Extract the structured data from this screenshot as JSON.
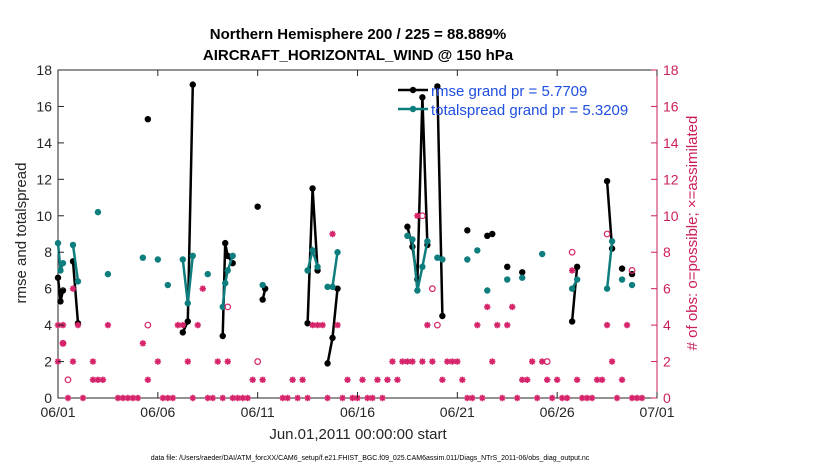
{
  "chart_data": {
    "type": "line",
    "title": "Northern Hemisphere 200 / 225 = 88.889%",
    "subtitle": "AIRCRAFT_HORIZONTAL_WIND @ 150 hPa",
    "ylabel": "rmse and totalspread",
    "ylabel_right": "# of obs: o=possible; ×=assimilated",
    "xlabel": "Jun.01,2011 00:00:00 start",
    "footer": "data file: /Users/raeder/DAI/ATM_forcXX/CAM6_setup/f.e21.FHIST_BGC.f09_025.CAM6assim.011/Diags_NTrS_2011-06/obs_diag_output.nc",
    "xlim": [
      0,
      30
    ],
    "ylim": [
      0,
      18
    ],
    "ylim_right": [
      0,
      18
    ],
    "x_ticks": [
      0,
      5,
      10,
      15,
      20,
      25,
      30
    ],
    "x_tick_labels": [
      "06/01",
      "06/06",
      "06/11",
      "06/16",
      "06/21",
      "06/26",
      "07/01"
    ],
    "y_ticks": [
      0,
      2,
      4,
      6,
      8,
      10,
      12,
      14,
      16,
      18
    ],
    "y_tick_labels": [
      "0",
      "2",
      "4",
      "6",
      "8",
      "10",
      "12",
      "14",
      "16",
      "18"
    ],
    "y_right_tick_labels": [
      "0",
      "2",
      "4",
      "6",
      "8",
      "10",
      "12",
      "14",
      "16",
      "18"
    ],
    "colors": {
      "rmse": "#000000",
      "spread": "#0e7d7d",
      "obs": "#d6246b",
      "legend_text": "#1f4fe0"
    },
    "series": [
      {
        "name": "rmse grand pr = 5.7709",
        "key": "rmse",
        "segments": [
          [
            [
              0.0,
              6.6
            ],
            [
              0.125,
              5.3
            ],
            [
              0.25,
              5.9
            ]
          ],
          [
            [
              0.75,
              7.5
            ],
            [
              1.0,
              4.1
            ]
          ],
          [
            [
              4.5,
              15.3
            ]
          ],
          [
            [
              6.25,
              3.6
            ],
            [
              6.5,
              4.2
            ],
            [
              6.75,
              17.2
            ]
          ],
          [
            [
              8.25,
              3.4
            ],
            [
              8.375,
              8.5
            ],
            [
              8.5,
              7.8
            ],
            [
              8.75,
              7.4
            ]
          ],
          [
            [
              10.0,
              10.5
            ]
          ],
          [
            [
              10.25,
              5.4
            ],
            [
              10.375,
              6.0
            ]
          ],
          [
            [
              12.5,
              4.1
            ],
            [
              12.75,
              11.5
            ],
            [
              13.0,
              7.0
            ]
          ],
          [
            [
              13.5,
              1.9
            ],
            [
              13.75,
              3.3
            ],
            [
              14.0,
              6.0
            ]
          ],
          [
            [
              17.5,
              9.4
            ],
            [
              17.75,
              8.3
            ],
            [
              18.0,
              6.5
            ],
            [
              18.25,
              16.5
            ],
            [
              18.5,
              8.4
            ]
          ],
          [
            [
              19.0,
              17.1
            ],
            [
              19.25,
              4.5
            ]
          ],
          [
            [
              20.5,
              9.2
            ]
          ],
          [
            [
              21.5,
              8.9
            ],
            [
              21.75,
              9.0
            ]
          ],
          [
            [
              22.5,
              7.2
            ]
          ],
          [
            [
              23.25,
              6.9
            ]
          ],
          [
            [
              25.75,
              4.2
            ],
            [
              26.0,
              7.2
            ]
          ],
          [
            [
              27.5,
              11.9
            ],
            [
              27.75,
              8.2
            ]
          ],
          [
            [
              28.25,
              7.1
            ]
          ],
          [
            [
              28.75,
              6.8
            ]
          ]
        ]
      },
      {
        "name": "totalspread grand pr = 5.3209",
        "key": "spread",
        "segments": [
          [
            [
              0.0,
              8.5
            ],
            [
              0.125,
              7.0
            ],
            [
              0.25,
              7.4
            ]
          ],
          [
            [
              0.75,
              8.4
            ],
            [
              1.0,
              6.4
            ]
          ],
          [
            [
              2.0,
              10.2
            ]
          ],
          [
            [
              2.5,
              6.8
            ]
          ],
          [
            [
              4.25,
              7.7
            ]
          ],
          [
            [
              5.0,
              7.6
            ]
          ],
          [
            [
              5.5,
              6.2
            ]
          ],
          [
            [
              6.25,
              7.6
            ],
            [
              6.5,
              5.2
            ],
            [
              6.75,
              7.8
            ]
          ],
          [
            [
              7.5,
              6.8
            ]
          ],
          [
            [
              8.25,
              5.0
            ],
            [
              8.375,
              6.3
            ],
            [
              8.5,
              7.0
            ],
            [
              8.75,
              7.8
            ]
          ],
          [
            [
              10.25,
              6.2
            ]
          ],
          [
            [
              12.5,
              7.0
            ],
            [
              12.75,
              8.1
            ],
            [
              13.0,
              7.2
            ]
          ],
          [
            [
              13.5,
              6.1
            ],
            [
              13.75,
              6.1
            ],
            [
              14.0,
              8.0
            ]
          ],
          [
            [
              17.5,
              8.9
            ],
            [
              17.75,
              8.7
            ],
            [
              18.0,
              5.9
            ],
            [
              18.25,
              7.2
            ],
            [
              18.5,
              8.6
            ]
          ],
          [
            [
              19.0,
              7.7
            ],
            [
              19.25,
              7.6
            ]
          ],
          [
            [
              20.5,
              7.6
            ]
          ],
          [
            [
              21.0,
              8.1
            ]
          ],
          [
            [
              21.5,
              5.9
            ]
          ],
          [
            [
              22.5,
              6.5
            ]
          ],
          [
            [
              23.25,
              6.6
            ]
          ],
          [
            [
              24.25,
              7.9
            ]
          ],
          [
            [
              25.75,
              6.0
            ],
            [
              26.0,
              6.5
            ]
          ],
          [
            [
              27.5,
              6.0
            ],
            [
              27.75,
              8.6
            ]
          ],
          [
            [
              28.25,
              6.5
            ]
          ],
          [
            [
              28.75,
              6.2
            ]
          ]
        ]
      }
    ],
    "obs_possible": [
      [
        0.25,
        3
      ],
      [
        0.5,
        1
      ],
      [
        4.5,
        4
      ],
      [
        10.0,
        2
      ],
      [
        18.25,
        10
      ],
      [
        18.75,
        6
      ],
      [
        19.0,
        4
      ],
      [
        24.5,
        2
      ],
      [
        25.75,
        8
      ],
      [
        27.5,
        9
      ],
      [
        28.75,
        7
      ],
      [
        8.5,
        5
      ]
    ],
    "obs_assimilated": [
      [
        0.0,
        4
      ],
      [
        0.0,
        2
      ],
      [
        0.25,
        4
      ],
      [
        0.25,
        3
      ],
      [
        0.5,
        0
      ],
      [
        0.75,
        2
      ],
      [
        0.75,
        6
      ],
      [
        1.0,
        4
      ],
      [
        1.25,
        0
      ],
      [
        1.75,
        2
      ],
      [
        1.75,
        1
      ],
      [
        2.0,
        1
      ],
      [
        2.25,
        1
      ],
      [
        2.5,
        4
      ],
      [
        3.0,
        0
      ],
      [
        3.25,
        0
      ],
      [
        3.5,
        0
      ],
      [
        3.75,
        0
      ],
      [
        4.0,
        0
      ],
      [
        4.25,
        3
      ],
      [
        4.5,
        1
      ],
      [
        5.0,
        2
      ],
      [
        5.25,
        0
      ],
      [
        5.5,
        0
      ],
      [
        5.75,
        0
      ],
      [
        6.0,
        4
      ],
      [
        6.25,
        4
      ],
      [
        6.5,
        2
      ],
      [
        6.75,
        0
      ],
      [
        7.0,
        4
      ],
      [
        7.25,
        6
      ],
      [
        7.5,
        0
      ],
      [
        7.75,
        0
      ],
      [
        8.0,
        2
      ],
      [
        8.25,
        0
      ],
      [
        8.5,
        2
      ],
      [
        8.75,
        0
      ],
      [
        9.0,
        0
      ],
      [
        9.25,
        0
      ],
      [
        9.5,
        0
      ],
      [
        9.75,
        1
      ],
      [
        10.25,
        1
      ],
      [
        11.25,
        0
      ],
      [
        11.5,
        0
      ],
      [
        11.75,
        1
      ],
      [
        12.0,
        0
      ],
      [
        12.25,
        1
      ],
      [
        12.5,
        0
      ],
      [
        12.75,
        4
      ],
      [
        13.0,
        4
      ],
      [
        13.25,
        4
      ],
      [
        13.5,
        0
      ],
      [
        13.75,
        9
      ],
      [
        14.0,
        4
      ],
      [
        14.25,
        0
      ],
      [
        14.5,
        1
      ],
      [
        14.75,
        0
      ],
      [
        15.0,
        0
      ],
      [
        15.25,
        1
      ],
      [
        15.5,
        0
      ],
      [
        15.75,
        0
      ],
      [
        16.0,
        1
      ],
      [
        16.25,
        0
      ],
      [
        16.5,
        1
      ],
      [
        16.75,
        2
      ],
      [
        17.0,
        1
      ],
      [
        17.25,
        2
      ],
      [
        17.5,
        2
      ],
      [
        17.75,
        2
      ],
      [
        18.0,
        10
      ],
      [
        18.25,
        2
      ],
      [
        18.5,
        4
      ],
      [
        18.75,
        2
      ],
      [
        19.25,
        1
      ],
      [
        19.5,
        2
      ],
      [
        19.75,
        2
      ],
      [
        20.0,
        2
      ],
      [
        20.25,
        1
      ],
      [
        20.5,
        0
      ],
      [
        20.75,
        0
      ],
      [
        21.0,
        4
      ],
      [
        21.25,
        0
      ],
      [
        21.5,
        5
      ],
      [
        21.75,
        2
      ],
      [
        22.0,
        4
      ],
      [
        22.25,
        0
      ],
      [
        22.5,
        4
      ],
      [
        22.75,
        5
      ],
      [
        23.0,
        0
      ],
      [
        23.25,
        1
      ],
      [
        23.5,
        1
      ],
      [
        23.75,
        2
      ],
      [
        24.0,
        0
      ],
      [
        24.25,
        2
      ],
      [
        24.5,
        1
      ],
      [
        24.75,
        0
      ],
      [
        25.0,
        1
      ],
      [
        25.25,
        0
      ],
      [
        25.5,
        0
      ],
      [
        25.75,
        7
      ],
      [
        26.0,
        1
      ],
      [
        26.25,
        0
      ],
      [
        26.5,
        0
      ],
      [
        26.75,
        0
      ],
      [
        27.0,
        1
      ],
      [
        27.25,
        1
      ],
      [
        27.5,
        4
      ],
      [
        27.75,
        2
      ],
      [
        28.0,
        0
      ],
      [
        28.25,
        1
      ],
      [
        28.5,
        4
      ],
      [
        28.75,
        0
      ],
      [
        29.0,
        0
      ],
      [
        29.25,
        0
      ]
    ]
  }
}
